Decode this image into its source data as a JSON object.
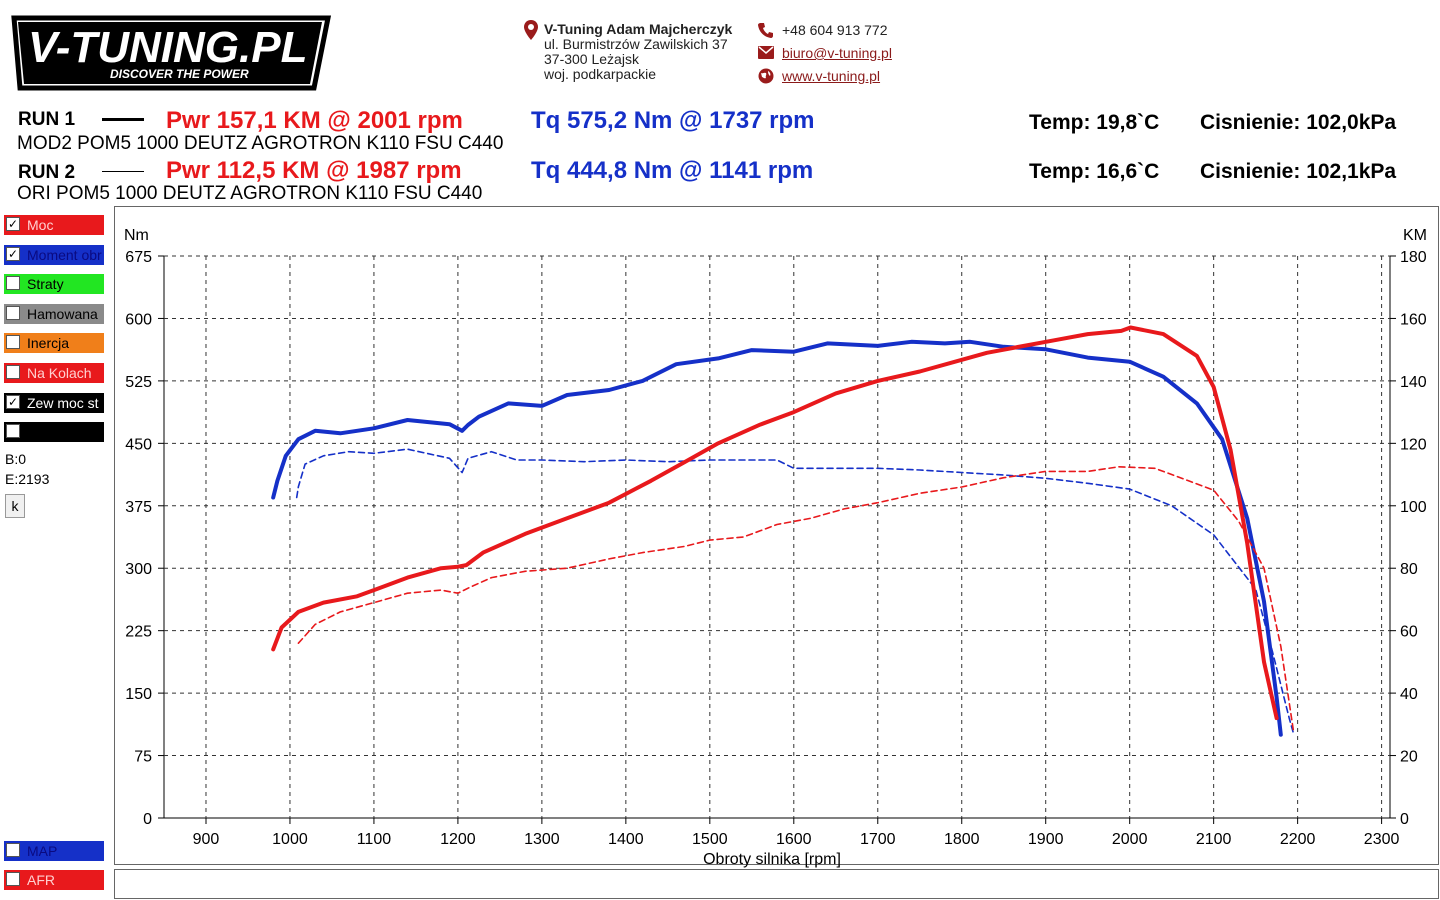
{
  "header": {
    "logo_text": "V-TUNING.PL",
    "logo_slogan": "DISCOVER THE POWER",
    "company_name": "V-Tuning Adam Majcherczyk",
    "address_line1": "ul. Burmistrzów Zawilskich 37",
    "address_line2": "37-300 Leżajsk",
    "address_line3": "woj. podkarpackie",
    "phone": "+48 604 913 772",
    "email": "biuro@v-tuning.pl",
    "website": "www.v-tuning.pl"
  },
  "runs": [
    {
      "label": "RUN 1",
      "power": "Pwr  157,1 KM @ 2001 rpm",
      "torque": "Tq 575,2 Nm @ 1737 rpm",
      "description": "MOD2 POM5 1000 DEUTZ AGROTRON K110 FSU C440",
      "temp": "Temp: 19,8`C",
      "pressure": "Cisnienie: 102,0kPa"
    },
    {
      "label": "RUN 2",
      "power": "Pwr  112,5 KM @ 1987 rpm",
      "torque": "Tq 444,8 Nm @ 1141 rpm",
      "description": "ORI POM5 1000 DEUTZ AGROTRON K110 FSU C440",
      "temp": "Temp: 16,6`C",
      "pressure": "Cisnienie: 102,1kPa"
    }
  ],
  "channels": [
    {
      "label": "Moc",
      "color": "#e8191c",
      "checked": true
    },
    {
      "label": "Moment obr",
      "color": "#1530c8",
      "checked": true
    },
    {
      "label": "Straty",
      "color": "#22e622",
      "checked": false
    },
    {
      "label": "Hamowana",
      "color": "#8a8a8a",
      "checked": false
    },
    {
      "label": "Inercja",
      "color": "#f07f1a",
      "checked": false
    },
    {
      "label": "Na Kolach",
      "color": "#e8191c",
      "checked": false
    },
    {
      "label": "Zew moc st",
      "color": "#000000",
      "checked": true
    },
    {
      "label": "",
      "color": "#000000",
      "checked": false
    }
  ],
  "bottom_channels": [
    {
      "label": "MAP",
      "color": "#1530c8",
      "checked": false
    },
    {
      "label": "AFR",
      "color": "#e8191c",
      "checked": false
    }
  ],
  "info": {
    "b": "B:0",
    "e": "E:2193",
    "button": "k"
  },
  "chart_data": {
    "type": "line",
    "xlabel": "Obroty silnika [rpm]",
    "ylabel_left": "Nm",
    "ylabel_right": "KM",
    "xlim": [
      850,
      2310
    ],
    "ylim_left": [
      0,
      675
    ],
    "ylim_right": [
      0,
      180
    ],
    "x_ticks": [
      900,
      1000,
      1100,
      1200,
      1300,
      1400,
      1500,
      1600,
      1700,
      1800,
      1900,
      2000,
      2100,
      2200,
      2300
    ],
    "y_ticks_left": [
      0,
      75,
      150,
      225,
      300,
      375,
      450,
      525,
      600,
      675
    ],
    "y_ticks_right": [
      0,
      20,
      40,
      60,
      80,
      100,
      120,
      140,
      160,
      180
    ],
    "grid": true,
    "series": [
      {
        "axis": "left",
        "color": "#1530c8",
        "style": "solid",
        "x": [
          980,
          985,
          995,
          1010,
          1030,
          1060,
          1080,
          1100,
          1140,
          1190,
          1205,
          1212,
          1225,
          1260,
          1300,
          1330,
          1380,
          1420,
          1460,
          1510,
          1550,
          1600,
          1640,
          1700,
          1740,
          1780,
          1810,
          1850,
          1900,
          1950,
          2000,
          2040,
          2080,
          2110,
          2140,
          2160,
          2175,
          2180
        ],
        "y": [
          385,
          405,
          435,
          455,
          465,
          462,
          465,
          468,
          478,
          473,
          465,
          472,
          482,
          498,
          495,
          508,
          514,
          525,
          545,
          552,
          562,
          560,
          570,
          567,
          572,
          570,
          572,
          566,
          563,
          553,
          548,
          530,
          498,
          455,
          360,
          260,
          145,
          100
        ]
      },
      {
        "axis": "left",
        "color": "#1530c8",
        "style": "dash",
        "x": [
          1008,
          1010,
          1018,
          1040,
          1070,
          1100,
          1140,
          1190,
          1205,
          1212,
          1240,
          1270,
          1300,
          1350,
          1400,
          1450,
          1500,
          1550,
          1580,
          1600,
          1650,
          1700,
          1750,
          1800,
          1850,
          1900,
          1950,
          2000,
          2050,
          2100,
          2150,
          2170,
          2190,
          2195
        ],
        "y": [
          385,
          398,
          425,
          435,
          440,
          438,
          443,
          432,
          415,
          432,
          440,
          430,
          430,
          428,
          430,
          428,
          430,
          430,
          430,
          420,
          420,
          420,
          418,
          415,
          412,
          408,
          402,
          395,
          375,
          340,
          275,
          200,
          120,
          102
        ]
      },
      {
        "axis": "right",
        "color": "#e8191c",
        "style": "solid",
        "x": [
          980,
          990,
          1010,
          1040,
          1080,
          1100,
          1140,
          1180,
          1200,
          1210,
          1230,
          1280,
          1330,
          1380,
          1430,
          1470,
          1510,
          1560,
          1600,
          1650,
          1700,
          1750,
          1790,
          1830,
          1870,
          1910,
          1950,
          1990,
          2001,
          2040,
          2080,
          2100,
          2120,
          2140,
          2160,
          2175
        ],
        "y": [
          54,
          61,
          66,
          69,
          71,
          73,
          77,
          80,
          80.5,
          81,
          85,
          91,
          96,
          101,
          108,
          114,
          120,
          126,
          130,
          136,
          140,
          143,
          146,
          149,
          151,
          153,
          155,
          156,
          157.1,
          155,
          148,
          138,
          118,
          88,
          50,
          32
        ]
      },
      {
        "axis": "right",
        "color": "#e8191c",
        "style": "dash",
        "x": [
          1010,
          1030,
          1060,
          1100,
          1140,
          1180,
          1200,
          1215,
          1240,
          1280,
          1330,
          1380,
          1420,
          1470,
          1500,
          1540,
          1560,
          1580,
          1620,
          1660,
          1700,
          1750,
          1800,
          1850,
          1900,
          1950,
          1987,
          2030,
          2070,
          2100,
          2130,
          2160,
          2180,
          2195
        ],
        "y": [
          56,
          62,
          66,
          69,
          72,
          73,
          72,
          74,
          77,
          79,
          80,
          83,
          85,
          87,
          89,
          90,
          92,
          94,
          96,
          99,
          101,
          104,
          106,
          109,
          111,
          111,
          112.5,
          112,
          108,
          105,
          95,
          80,
          55,
          28
        ]
      }
    ]
  }
}
